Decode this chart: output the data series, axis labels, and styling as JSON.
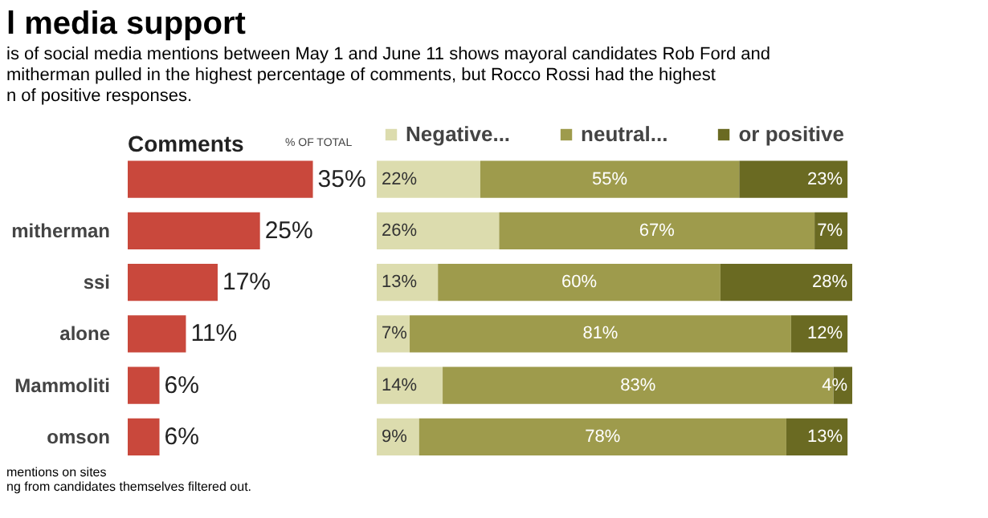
{
  "chart_data": [
    {
      "type": "other",
      "title": "l media support",
      "subtitle": "is of social media mentions between May 1 and June 11 shows mayoral candidates Rob Ford and\nmitherman pulled in the highest percentage of comments, but Rocco Rossi had the highest\nn of positive responses."
    },
    {
      "type": "bar",
      "orientation": "horizontal",
      "title": "Comments",
      "xlabel": "% OF TOTAL",
      "categories": [
        null,
        "mitherman",
        "ssi",
        "alone",
        "Mammoliti",
        "omson"
      ],
      "values": [
        35,
        25,
        17,
        11,
        6,
        6
      ],
      "color": "#c9483c",
      "value_labels": [
        "35%",
        "25%",
        "17%",
        "11%",
        "6%",
        "6%"
      ],
      "tick_labels": "y",
      "grid": false,
      "annotations": [
        "mentions on sites",
        "ng from candidates themselves filtered out."
      ]
    },
    {
      "type": "bar",
      "orientation": "horizontal",
      "stacked": true,
      "categories": [
        null,
        null,
        null,
        null,
        null,
        null
      ],
      "tick_labels": false,
      "grid": false,
      "legend": "top",
      "series": [
        {
          "name": "Negative...",
          "color": "#dcdcae",
          "values": [
            22,
            26,
            13,
            7,
            14,
            9
          ],
          "value_labels": [
            "22%",
            "26%",
            "13%",
            "7%",
            "14%",
            "9%"
          ]
        },
        {
          "name": "neutral...",
          "color": "#9e9b4c",
          "values": [
            55,
            67,
            60,
            81,
            83,
            78
          ],
          "value_labels": [
            "55%",
            "67%",
            "60%",
            "81%",
            "83%",
            "78%"
          ]
        },
        {
          "name": "or positive",
          "color": "#6a6a22",
          "values": [
            23,
            7,
            28,
            12,
            4,
            13
          ],
          "value_labels": [
            "23%",
            "7%",
            "28%",
            "12%",
            "4%",
            "13%"
          ]
        }
      ]
    }
  ]
}
